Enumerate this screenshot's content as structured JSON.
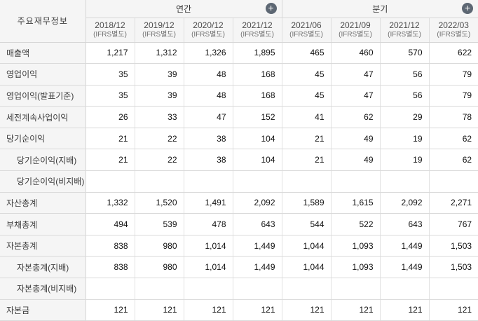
{
  "table": {
    "corner_label": "주요재무정보",
    "groups": [
      {
        "label": "연간",
        "button": "plus"
      },
      {
        "label": "분기",
        "button": "plus"
      }
    ],
    "columns": [
      {
        "period": "2018/12",
        "basis": "(IFRS별도)"
      },
      {
        "period": "2019/12",
        "basis": "(IFRS별도)"
      },
      {
        "period": "2020/12",
        "basis": "(IFRS별도)"
      },
      {
        "period": "2021/12",
        "basis": "(IFRS별도)"
      },
      {
        "period": "2021/06",
        "basis": "(IFRS별도)"
      },
      {
        "period": "2021/09",
        "basis": "(IFRS별도)"
      },
      {
        "period": "2021/12",
        "basis": "(IFRS별도)"
      },
      {
        "period": "2022/03",
        "basis": "(IFRS별도)"
      }
    ],
    "rows": [
      {
        "label": "매출액",
        "indent": false,
        "values": [
          "1,217",
          "1,312",
          "1,326",
          "1,895",
          "465",
          "460",
          "570",
          "622"
        ]
      },
      {
        "label": "영업이익",
        "indent": false,
        "values": [
          "35",
          "39",
          "48",
          "168",
          "45",
          "47",
          "56",
          "79"
        ]
      },
      {
        "label": "영업이익(발표기준)",
        "indent": false,
        "values": [
          "35",
          "39",
          "48",
          "168",
          "45",
          "47",
          "56",
          "79"
        ]
      },
      {
        "label": "세전계속사업이익",
        "indent": false,
        "values": [
          "26",
          "33",
          "47",
          "152",
          "41",
          "62",
          "29",
          "78"
        ]
      },
      {
        "label": "당기순이익",
        "indent": false,
        "values": [
          "21",
          "22",
          "38",
          "104",
          "21",
          "49",
          "19",
          "62"
        ]
      },
      {
        "label": "당기순이익(지배)",
        "indent": true,
        "values": [
          "21",
          "22",
          "38",
          "104",
          "21",
          "49",
          "19",
          "62"
        ]
      },
      {
        "label": "당기순이익(비지배)",
        "indent": true,
        "values": [
          "",
          "",
          "",
          "",
          "",
          "",
          "",
          ""
        ]
      },
      {
        "label": "자산총계",
        "indent": false,
        "values": [
          "1,332",
          "1,520",
          "1,491",
          "2,092",
          "1,589",
          "1,615",
          "2,092",
          "2,271"
        ]
      },
      {
        "label": "부채총계",
        "indent": false,
        "values": [
          "494",
          "539",
          "478",
          "643",
          "544",
          "522",
          "643",
          "767"
        ]
      },
      {
        "label": "자본총계",
        "indent": false,
        "values": [
          "838",
          "980",
          "1,014",
          "1,449",
          "1,044",
          "1,093",
          "1,449",
          "1,503"
        ]
      },
      {
        "label": "자본총계(지배)",
        "indent": true,
        "values": [
          "838",
          "980",
          "1,014",
          "1,449",
          "1,044",
          "1,093",
          "1,449",
          "1,503"
        ]
      },
      {
        "label": "자본총계(비지배)",
        "indent": true,
        "values": [
          "",
          "",
          "",
          "",
          "",
          "",
          "",
          ""
        ]
      },
      {
        "label": "자본금",
        "indent": false,
        "values": [
          "121",
          "121",
          "121",
          "121",
          "121",
          "121",
          "121",
          "121"
        ]
      }
    ]
  },
  "icons": {
    "plus_glyph": "+"
  },
  "colors": {
    "header_bg": "#f5f5f5",
    "border": "#d6d6d6",
    "plus_button_bg": "#5d6773"
  }
}
